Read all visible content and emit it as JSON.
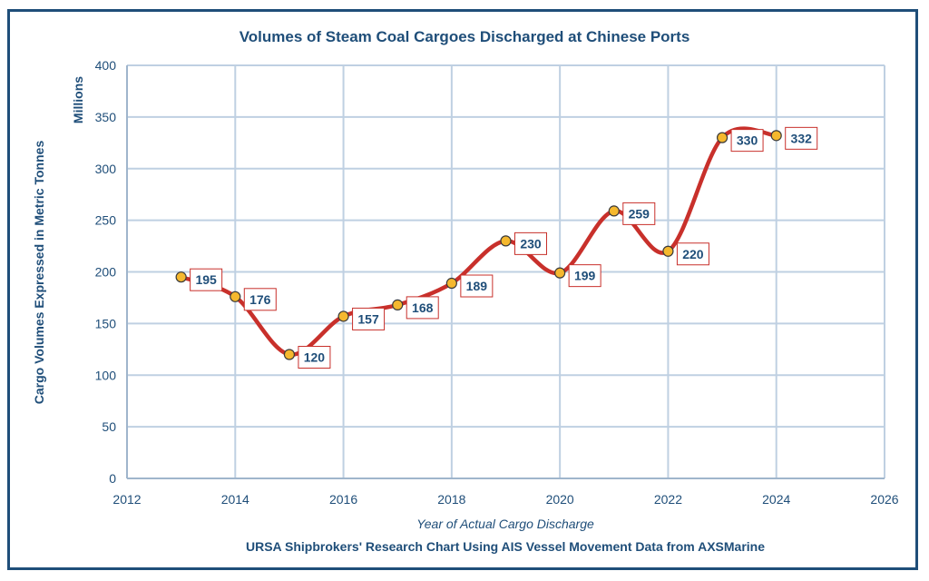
{
  "chart_data": {
    "type": "line",
    "title": "Volumes of Steam Coal Cargoes Discharged at Chinese Ports",
    "xlabel": "Year of Actual Cargo Discharge",
    "ylabel": "Cargo Volumes Expressed in Metric Tonnes",
    "yunit": "Millions",
    "source": "URSA Shipbrokers' Research Chart Using AIS Vessel Movement Data from AXSMarine",
    "xlim": [
      2012,
      2026
    ],
    "ylim": [
      0,
      400
    ],
    "xticks": [
      2012,
      2014,
      2016,
      2018,
      2020,
      2022,
      2024,
      2026
    ],
    "yticks": [
      0,
      50,
      100,
      150,
      200,
      250,
      300,
      350,
      400
    ],
    "grid": true,
    "smooth": true,
    "line_color": "#c8302b",
    "marker_color": "#f5b82e",
    "series": [
      {
        "x": [
          2013,
          2014,
          2015,
          2016,
          2017,
          2018,
          2019,
          2020,
          2021,
          2022,
          2023,
          2024
        ],
        "values": [
          195,
          176,
          120,
          157,
          168,
          189,
          230,
          199,
          259,
          220,
          330,
          332
        ],
        "labels": [
          "195",
          "176",
          "120",
          "157",
          "168",
          "189",
          "230",
          "199",
          "259",
          "220",
          "330",
          "332"
        ]
      }
    ]
  }
}
